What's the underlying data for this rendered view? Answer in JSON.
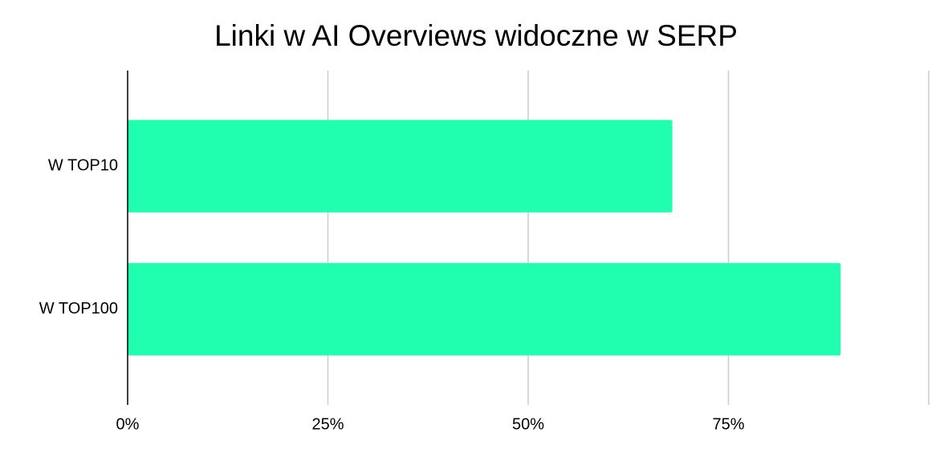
{
  "chart_data": {
    "type": "bar",
    "orientation": "horizontal",
    "title": "Linki w AI Overviews widoczne w SERP",
    "categories": [
      "W TOP10",
      "W TOP100"
    ],
    "values": [
      68,
      89
    ],
    "color": "#1fffaf",
    "xlim": [
      0,
      100
    ],
    "xticks": [
      {
        "value": 0,
        "label": "0%"
      },
      {
        "value": 25,
        "label": "25%"
      },
      {
        "value": 50,
        "label": "50%"
      },
      {
        "value": 75,
        "label": "75%"
      }
    ],
    "grid": true
  }
}
